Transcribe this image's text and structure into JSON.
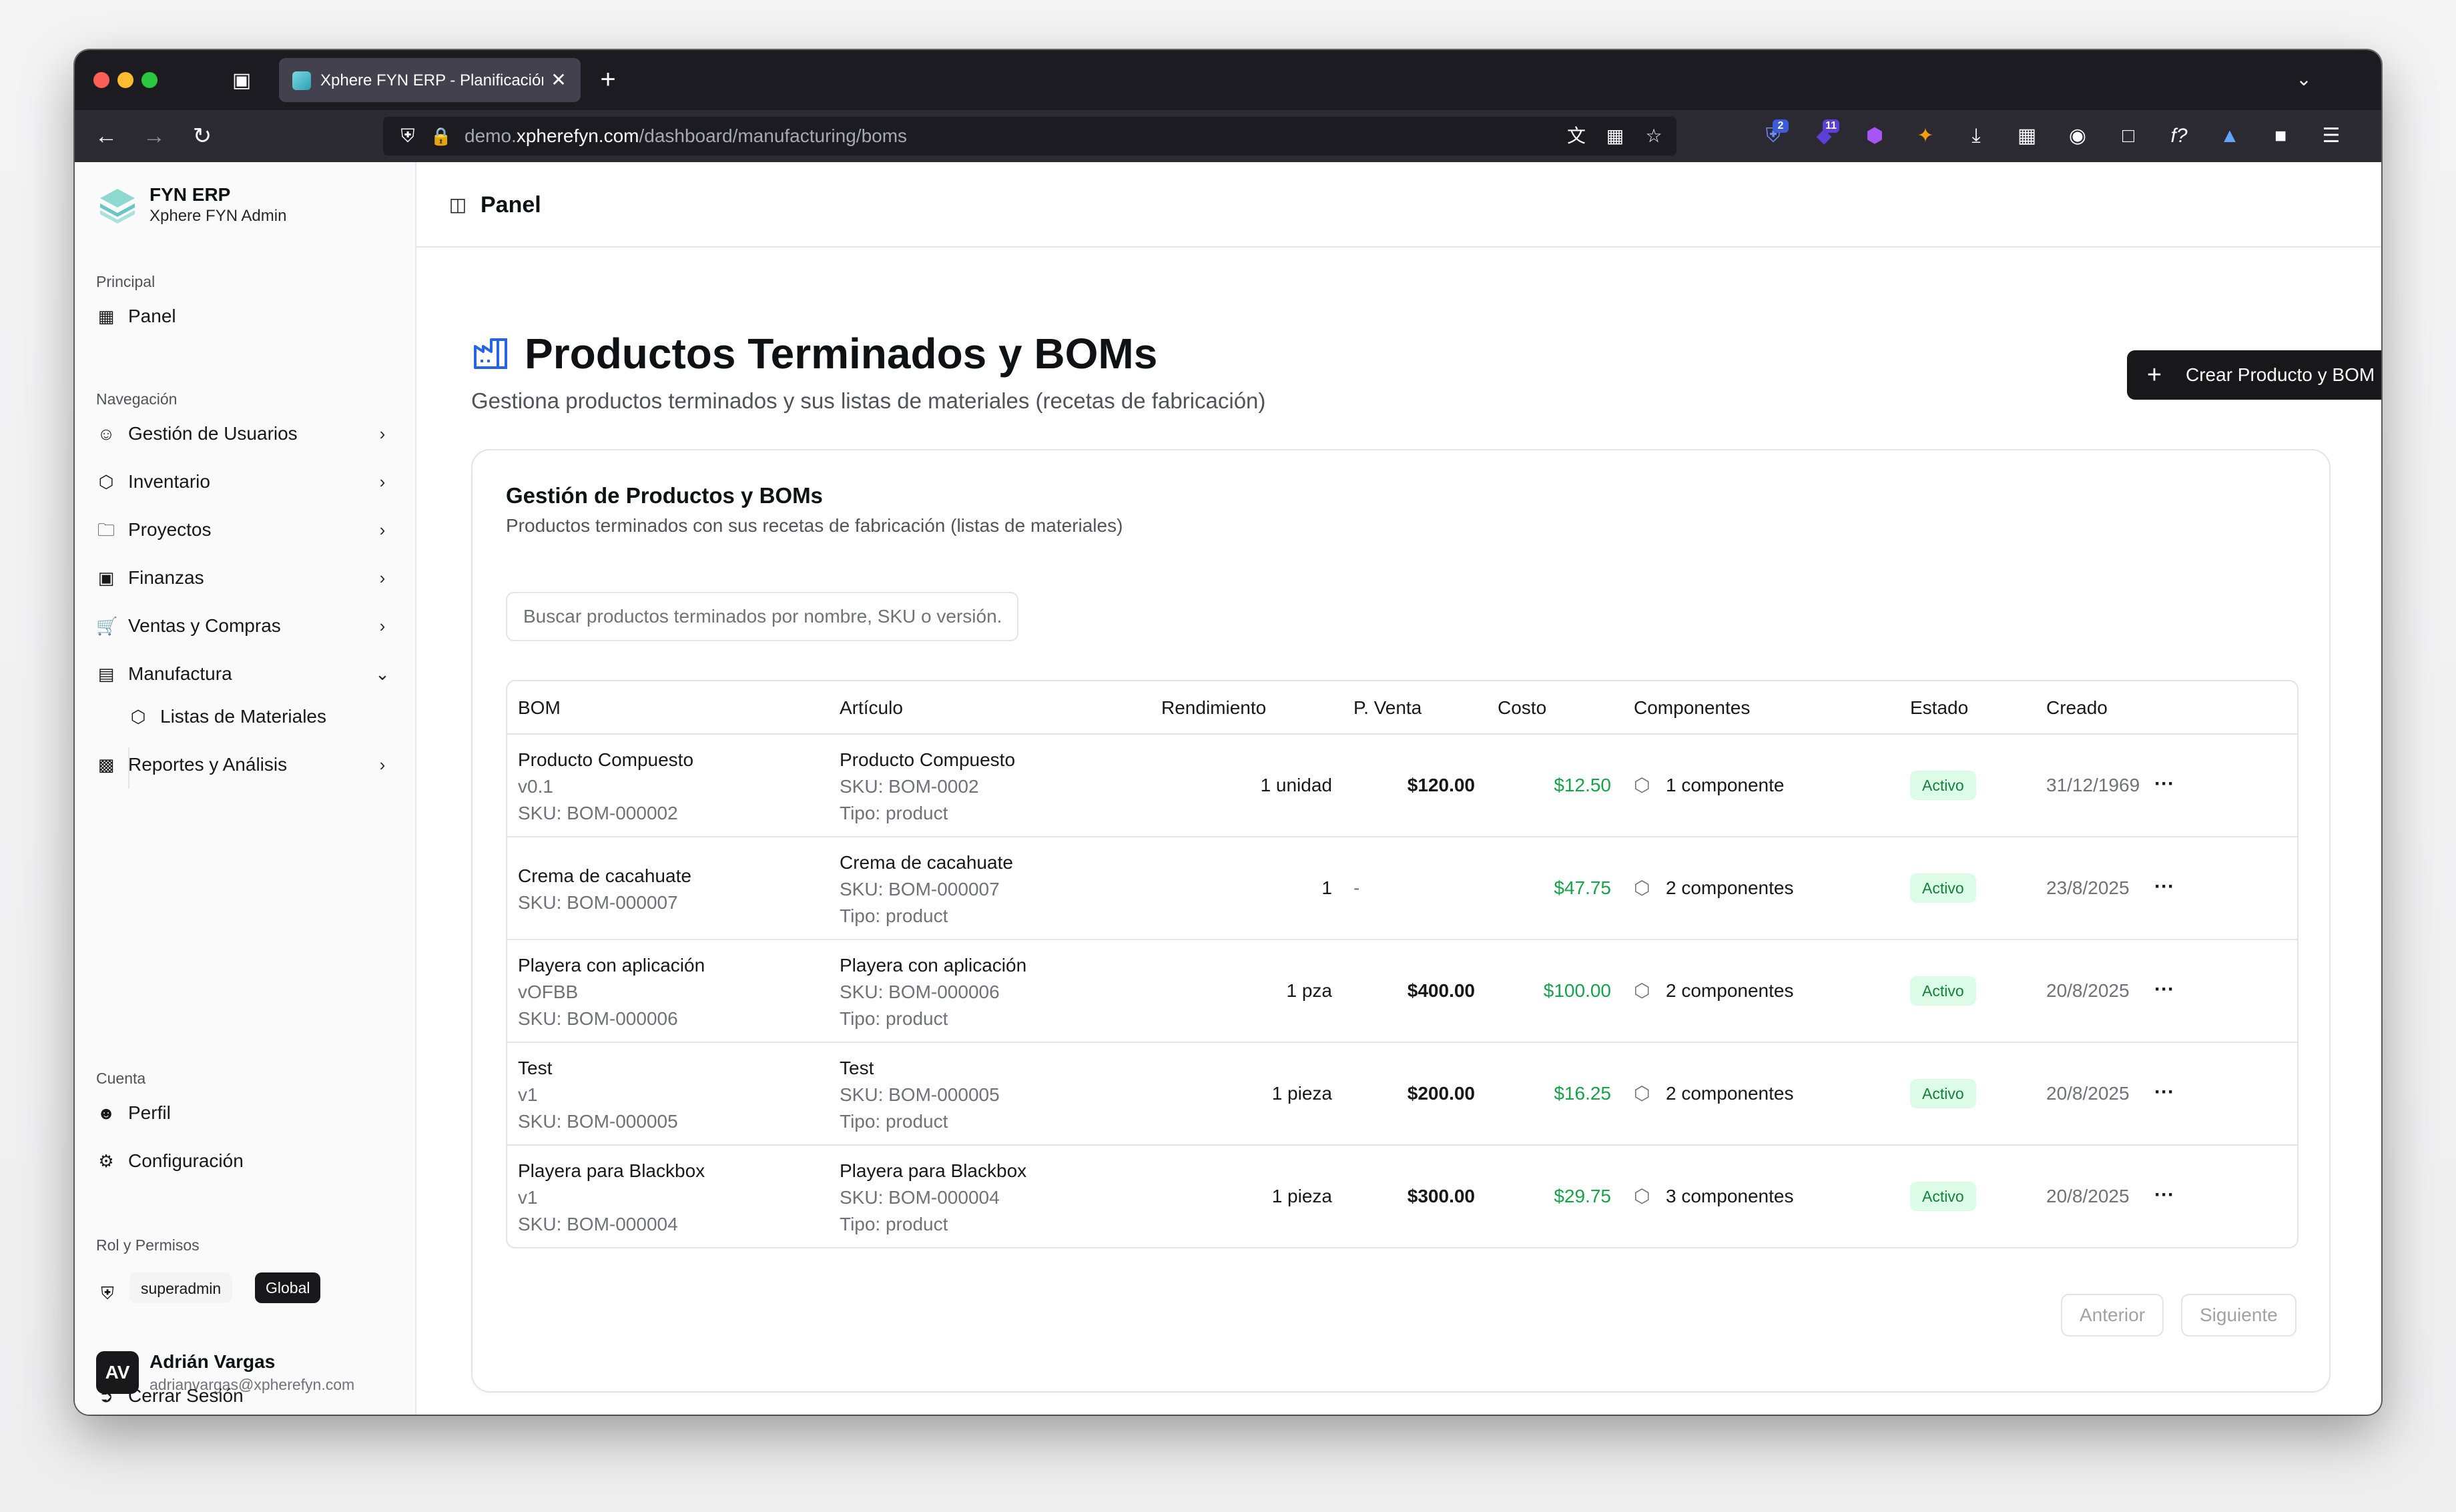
{
  "browser": {
    "tab_title": "Xphere FYN ERP - Planificación",
    "url_prefix": "demo.",
    "url_host": "xpherefyn.com",
    "url_path": "/dashboard/manufacturing/boms",
    "ext_badge_1": "2",
    "ext_badge_2": "11"
  },
  "sidebar": {
    "brand_name": "FYN ERP",
    "brand_sub": "Xphere FYN Admin",
    "section_principal": "Principal",
    "panel": "Panel",
    "section_nav": "Navegación",
    "nav": [
      {
        "label": "Gestión de Usuarios",
        "icon": "users-icon"
      },
      {
        "label": "Inventario",
        "icon": "box-icon"
      },
      {
        "label": "Proyectos",
        "icon": "folder-icon"
      },
      {
        "label": "Finanzas",
        "icon": "banknote-icon"
      },
      {
        "label": "Ventas y Compras",
        "icon": "cart-icon"
      },
      {
        "label": "Manufactura",
        "icon": "factory-icon"
      },
      {
        "label": "Listas de Materiales",
        "icon": "package-icon"
      },
      {
        "label": "Reportes y Análisis",
        "icon": "bar-chart-icon"
      }
    ],
    "section_account": "Cuenta",
    "profile": "Perfil",
    "settings": "Configuración",
    "section_roles": "Rol y Permisos",
    "role": "superadmin",
    "scope": "Global",
    "user_initials": "AV",
    "user_name": "Adrián Vargas",
    "user_email": "adrianvargas@xpherefyn.com",
    "logout": "Cerrar Sesión"
  },
  "topbar": {
    "title": "Panel"
  },
  "header": {
    "title": "Productos Terminados y BOMs",
    "subtitle": "Gestiona productos terminados y sus listas de materiales (recetas de fabricación)",
    "create_button": "Crear Producto y BOM"
  },
  "card": {
    "title": "Gestión de Productos y BOMs",
    "subtitle": "Productos terminados con sus recetas de fabricación (listas de materiales)",
    "search_placeholder": "Buscar productos terminados por nombre, SKU o versión..."
  },
  "table": {
    "columns": [
      "BOM",
      "Artículo",
      "Rendimiento",
      "P. Venta",
      "Costo",
      "Componentes",
      "Estado",
      "Creado"
    ],
    "rows": [
      {
        "bom_name": "Producto Compuesto",
        "bom_version": "v0.1",
        "bom_sku": "SKU: BOM-000002",
        "art_name": "Producto Compuesto",
        "art_sku": "SKU: BOM-0002",
        "art_type": "Tipo: product",
        "yield": "1 unidad",
        "price": "$120.00",
        "cost": "$12.50",
        "components": "1 componente",
        "status": "Activo",
        "created": "31/12/1969"
      },
      {
        "bom_name": "Crema de cacahuate",
        "bom_version": "",
        "bom_sku": "SKU: BOM-000007",
        "art_name": "Crema de cacahuate",
        "art_sku": "SKU: BOM-000007",
        "art_type": "Tipo: product",
        "yield": "1",
        "price": "-",
        "cost": "$47.75",
        "components": "2 componentes",
        "status": "Activo",
        "created": "23/8/2025"
      },
      {
        "bom_name": "Playera con aplicación",
        "bom_version": "vOFBB",
        "bom_sku": "SKU: BOM-000006",
        "art_name": "Playera con aplicación",
        "art_sku": "SKU: BOM-000006",
        "art_type": "Tipo: product",
        "yield": "1 pza",
        "price": "$400.00",
        "cost": "$100.00",
        "components": "2 componentes",
        "status": "Activo",
        "created": "20/8/2025"
      },
      {
        "bom_name": "Test",
        "bom_version": "v1",
        "bom_sku": "SKU: BOM-000005",
        "art_name": "Test",
        "art_sku": "SKU: BOM-000005",
        "art_type": "Tipo: product",
        "yield": "1 pieza",
        "price": "$200.00",
        "cost": "$16.25",
        "components": "2 componentes",
        "status": "Activo",
        "created": "20/8/2025"
      },
      {
        "bom_name": "Playera para Blackbox",
        "bom_version": "v1",
        "bom_sku": "SKU: BOM-000004",
        "art_name": "Playera para Blackbox",
        "art_sku": "SKU: BOM-000004",
        "art_type": "Tipo: product",
        "yield": "1 pieza",
        "price": "$300.00",
        "cost": "$29.75",
        "components": "3 componentes",
        "status": "Activo",
        "created": "20/8/2025"
      }
    ]
  },
  "pagination": {
    "prev": "Anterior",
    "next": "Siguiente"
  },
  "colors": {
    "accent": "#18181b",
    "green": "#16a34a",
    "badge_bg": "#dcfce7",
    "icon_blue": "#2563eb"
  }
}
